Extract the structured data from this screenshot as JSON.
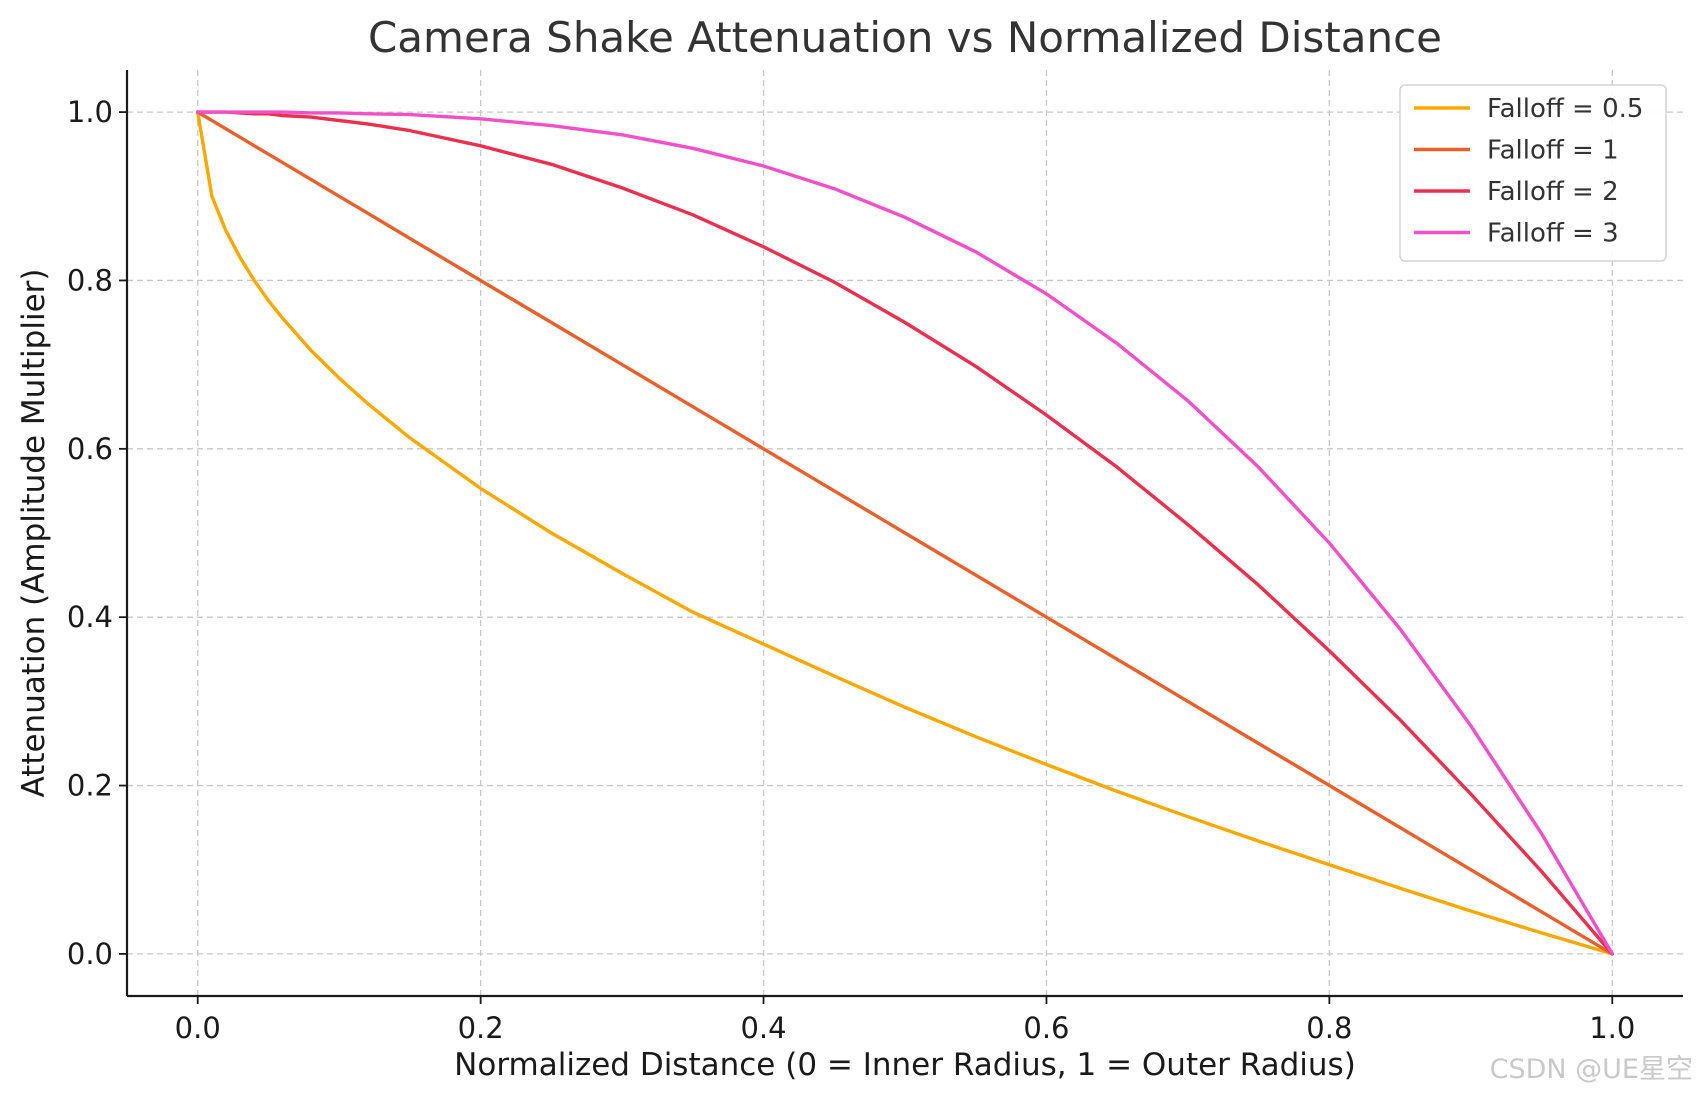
{
  "chart_data": {
    "type": "line",
    "title": "Camera Shake Attenuation vs Normalized Distance",
    "xlabel": "Normalized Distance (0 = Inner Radius, 1 = Outer Radius)",
    "ylabel": "Attenuation (Amplitude Multiplier)",
    "xlim": [
      -0.05,
      1.05
    ],
    "ylim": [
      -0.05,
      1.05
    ],
    "xticks": [
      "0.0",
      "0.2",
      "0.4",
      "0.6",
      "0.8",
      "1.0"
    ],
    "yticks": [
      "0.0",
      "0.2",
      "0.4",
      "0.6",
      "0.8",
      "1.0"
    ],
    "grid": true,
    "legend_position": "top-right",
    "x": [
      0.0,
      0.01,
      0.02,
      0.03,
      0.04,
      0.05,
      0.06,
      0.08,
      0.1,
      0.12,
      0.15,
      0.2,
      0.25,
      0.3,
      0.35,
      0.4,
      0.45,
      0.5,
      0.55,
      0.6,
      0.65,
      0.7,
      0.75,
      0.8,
      0.85,
      0.9,
      0.95,
      1.0
    ],
    "series": [
      {
        "name": "Falloff = 0.5",
        "color": "#f9a800",
        "values": [
          1.0,
          0.9,
          0.859,
          0.827,
          0.8,
          0.776,
          0.755,
          0.717,
          0.684,
          0.654,
          0.613,
          0.553,
          0.5,
          0.452,
          0.406,
          0.368,
          0.33,
          0.293,
          0.258,
          0.225,
          0.193,
          0.163,
          0.134,
          0.106,
          0.078,
          0.051,
          0.025,
          0.0
        ]
      },
      {
        "name": "Falloff = 1",
        "color": "#e8612c",
        "values": [
          1.0,
          0.99,
          0.98,
          0.97,
          0.96,
          0.95,
          0.94,
          0.92,
          0.9,
          0.88,
          0.85,
          0.8,
          0.75,
          0.7,
          0.65,
          0.6,
          0.55,
          0.5,
          0.45,
          0.4,
          0.35,
          0.3,
          0.25,
          0.2,
          0.15,
          0.1,
          0.05,
          0.0
        ]
      },
      {
        "name": "Falloff = 2",
        "color": "#e8304f",
        "values": [
          1.0,
          1.0,
          1.0,
          0.999,
          0.998,
          0.998,
          0.996,
          0.994,
          0.99,
          0.986,
          0.978,
          0.96,
          0.938,
          0.91,
          0.878,
          0.84,
          0.798,
          0.75,
          0.698,
          0.64,
          0.578,
          0.51,
          0.438,
          0.36,
          0.278,
          0.19,
          0.098,
          0.0
        ]
      },
      {
        "name": "Falloff = 3",
        "color": "#f050c8",
        "values": [
          1.0,
          1.0,
          1.0,
          1.0,
          1.0,
          1.0,
          1.0,
          0.999,
          0.999,
          0.998,
          0.997,
          0.992,
          0.984,
          0.973,
          0.957,
          0.936,
          0.909,
          0.875,
          0.834,
          0.784,
          0.725,
          0.657,
          0.578,
          0.488,
          0.386,
          0.271,
          0.143,
          0.0
        ]
      }
    ]
  },
  "watermark": "CSDN @UE星空"
}
